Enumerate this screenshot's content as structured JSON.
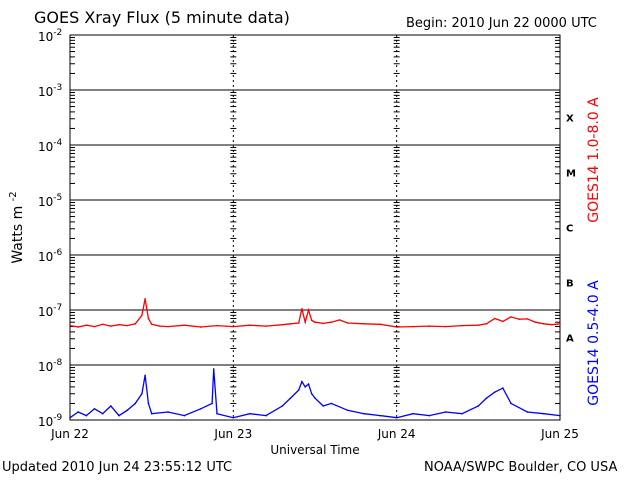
{
  "header": {
    "title": "GOES Xray Flux (5 minute data)",
    "begin": "Begin:  2010 Jun 22 0000 UTC"
  },
  "footer": {
    "updated": "Updated 2010 Jun 24 23:55:12 UTC",
    "source": "NOAA/SWPC Boulder, CO USA"
  },
  "chart_data": {
    "type": "line",
    "title": "GOES Xray Flux (5 minute data)",
    "xlabel": "Universal Time",
    "ylabel": "Watts m",
    "ylabel_sup": "-2",
    "y_scale": "log",
    "ylim": [
      1e-09,
      0.01
    ],
    "xlim": [
      0,
      3
    ],
    "x_unit": "days since 2010 Jun 22 0000 UTC",
    "x_ticks": [
      {
        "value": 0,
        "label": "Jun 22"
      },
      {
        "value": 1,
        "label": "Jun 23"
      },
      {
        "value": 2,
        "label": "Jun 24"
      },
      {
        "value": 3,
        "label": "Jun 25"
      }
    ],
    "y_ticks": [
      {
        "exp": -2,
        "base": "10",
        "sup": "-2"
      },
      {
        "exp": -3,
        "base": "10",
        "sup": "-3"
      },
      {
        "exp": -4,
        "base": "10",
        "sup": "-4"
      },
      {
        "exp": -5,
        "base": "10",
        "sup": "-5"
      },
      {
        "exp": -6,
        "base": "10",
        "sup": "-6"
      },
      {
        "exp": -7,
        "base": "10",
        "sup": "-7"
      },
      {
        "exp": -8,
        "base": "10",
        "sup": "-8"
      },
      {
        "exp": -9,
        "base": "10",
        "sup": "-9"
      }
    ],
    "flare_classes": [
      {
        "label": "X",
        "lower": 0.0001
      },
      {
        "label": "M",
        "lower": 1e-05
      },
      {
        "label": "C",
        "lower": 1e-06
      },
      {
        "label": "B",
        "lower": 1e-07
      },
      {
        "label": "A",
        "lower": 1e-08
      }
    ],
    "grid": "horizontal at decades, dashed vertical at day boundaries",
    "series": [
      {
        "name": "GOES14 1.0-8.0 A",
        "color": "#ff0000",
        "x": [
          0,
          0.05,
          0.1,
          0.15,
          0.2,
          0.25,
          0.3,
          0.35,
          0.4,
          0.44,
          0.46,
          0.48,
          0.5,
          0.55,
          0.6,
          0.7,
          0.8,
          0.9,
          1.0,
          1.1,
          1.2,
          1.3,
          1.35,
          1.4,
          1.42,
          1.44,
          1.46,
          1.48,
          1.5,
          1.55,
          1.6,
          1.65,
          1.7,
          1.8,
          1.9,
          2.0,
          2.1,
          2.2,
          2.3,
          2.4,
          2.5,
          2.55,
          2.6,
          2.65,
          2.7,
          2.75,
          2.8,
          2.85,
          2.9,
          2.95,
          3.0
        ],
        "values": [
          5.2e-08,
          4.9e-08,
          5.3e-08,
          5e-08,
          5.5e-08,
          5.1e-08,
          5.4e-08,
          5.2e-08,
          5.6e-08,
          8e-08,
          1.6e-07,
          7e-08,
          5.5e-08,
          5.1e-08,
          5e-08,
          5.3e-08,
          4.9e-08,
          5.2e-08,
          5e-08,
          5.3e-08,
          5.1e-08,
          5.4e-08,
          5.6e-08,
          5.8e-08,
          1.05e-07,
          6e-08,
          1e-07,
          6.5e-08,
          6e-08,
          5.7e-08,
          6e-08,
          6.6e-08,
          5.8e-08,
          5.6e-08,
          5.5e-08,
          4.9e-08,
          5e-08,
          5.1e-08,
          5e-08,
          5.2e-08,
          5.3e-08,
          5.6e-08,
          7e-08,
          6.2e-08,
          7.5e-08,
          6.8e-08,
          6.9e-08,
          6e-08,
          5.6e-08,
          5.4e-08,
          5.6e-08
        ]
      },
      {
        "name": "GOES14 0.5-4.0 A",
        "color": "#0000ff",
        "x": [
          0,
          0.05,
          0.1,
          0.15,
          0.2,
          0.25,
          0.3,
          0.35,
          0.4,
          0.44,
          0.46,
          0.48,
          0.5,
          0.6,
          0.7,
          0.8,
          0.87,
          0.88,
          0.9,
          1.0,
          1.1,
          1.2,
          1.3,
          1.35,
          1.4,
          1.42,
          1.44,
          1.46,
          1.48,
          1.5,
          1.55,
          1.6,
          1.7,
          1.8,
          1.9,
          2.0,
          2.1,
          2.2,
          2.3,
          2.4,
          2.5,
          2.55,
          2.6,
          2.65,
          2.7,
          2.8,
          2.9,
          3.0
        ],
        "values": [
          1.1e-09,
          1.4e-09,
          1.2e-09,
          1.6e-09,
          1.3e-09,
          1.8e-09,
          1.2e-09,
          1.5e-09,
          2e-09,
          3e-09,
          6.5e-09,
          2e-09,
          1.3e-09,
          1.4e-09,
          1.2e-09,
          1.6e-09,
          2e-09,
          8.5e-09,
          1.3e-09,
          1.1e-09,
          1.3e-09,
          1.2e-09,
          1.8e-09,
          2.5e-09,
          3.5e-09,
          5e-09,
          4e-09,
          4.5e-09,
          3e-09,
          2.5e-09,
          1.8e-09,
          2e-09,
          1.5e-09,
          1.3e-09,
          1.2e-09,
          1.1e-09,
          1.3e-09,
          1.2e-09,
          1.4e-09,
          1.3e-09,
          1.8e-09,
          2.5e-09,
          3.2e-09,
          3.8e-09,
          2e-09,
          1.4e-09,
          1.3e-09,
          1.2e-09
        ]
      }
    ]
  }
}
